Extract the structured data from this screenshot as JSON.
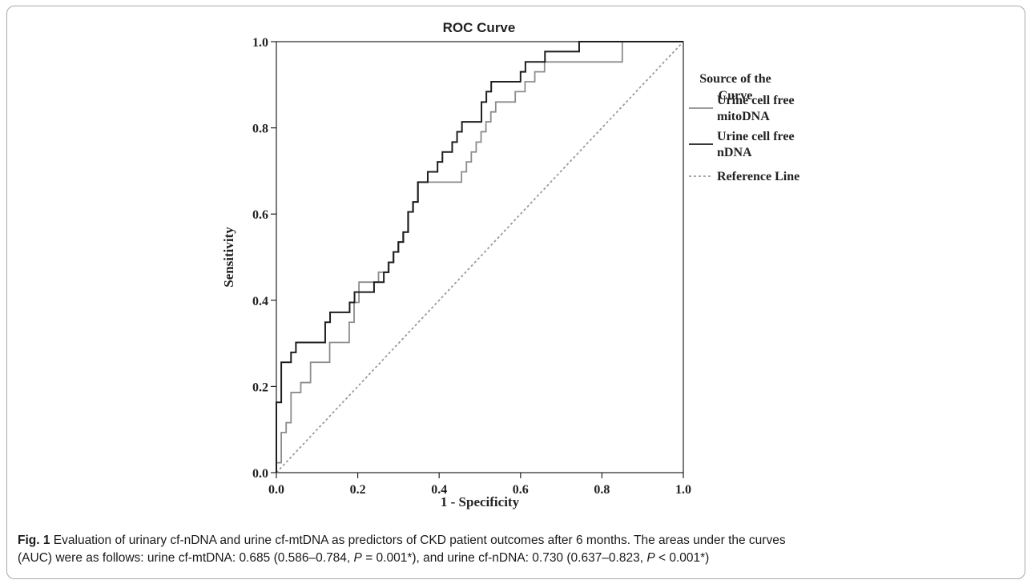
{
  "caption": {
    "fig_label": "Fig. 1",
    "line1": " Evaluation of urinary cf-nDNA and urine cf-mtDNA as predictors of CKD patient outcomes after 6 months. The areas under the curves",
    "line2_a": "(AUC) were as follows: urine cf-mtDNA: 0.685 (0.586–0.784, ",
    "p1_symbol": "P",
    "p1_rest": " = 0.001*), and urine cf-nDNA: 0.730 (0.637–0.823, ",
    "p2_symbol": "P",
    "p2_rest": " < 0.001*)"
  },
  "chart_data": {
    "type": "line",
    "title": "ROC Curve",
    "xlabel": "1 - Specificity",
    "ylabel": "Sensitivity",
    "xlim": [
      0,
      1
    ],
    "ylim": [
      0,
      1
    ],
    "xticks": [
      "0.0",
      "0.2",
      "0.4",
      "0.6",
      "0.8",
      "1.0"
    ],
    "yticks": [
      "0.0",
      "0.2",
      "0.4",
      "0.6",
      "0.8",
      "1.0"
    ],
    "grid": false,
    "legend": {
      "title": "Source of the Curve",
      "title_lines": [
        "Source of the",
        "Curve"
      ],
      "placement": "right"
    },
    "series": [
      {
        "name": "Urine cell free mitoDNA",
        "label_lines": [
          "Urine cell free",
          "mitoDNA"
        ],
        "color": "#8c8c8c",
        "dash": "none",
        "points": [
          [
            0,
            0
          ],
          [
            0,
            0.023
          ],
          [
            0.012,
            0.023
          ],
          [
            0.012,
            0.093
          ],
          [
            0.024,
            0.093
          ],
          [
            0.024,
            0.116
          ],
          [
            0.036,
            0.116
          ],
          [
            0.036,
            0.186
          ],
          [
            0.06,
            0.186
          ],
          [
            0.06,
            0.209
          ],
          [
            0.084,
            0.209
          ],
          [
            0.084,
            0.256
          ],
          [
            0.131,
            0.256
          ],
          [
            0.131,
            0.302
          ],
          [
            0.179,
            0.302
          ],
          [
            0.179,
            0.349
          ],
          [
            0.191,
            0.349
          ],
          [
            0.191,
            0.395
          ],
          [
            0.203,
            0.395
          ],
          [
            0.203,
            0.442
          ],
          [
            0.251,
            0.442
          ],
          [
            0.251,
            0.465
          ],
          [
            0.275,
            0.465
          ],
          [
            0.275,
            0.488
          ],
          [
            0.287,
            0.488
          ],
          [
            0.287,
            0.512
          ],
          [
            0.299,
            0.512
          ],
          [
            0.299,
            0.535
          ],
          [
            0.311,
            0.535
          ],
          [
            0.311,
            0.558
          ],
          [
            0.323,
            0.558
          ],
          [
            0.323,
            0.605
          ],
          [
            0.335,
            0.605
          ],
          [
            0.335,
            0.628
          ],
          [
            0.347,
            0.628
          ],
          [
            0.347,
            0.674
          ],
          [
            0.455,
            0.674
          ],
          [
            0.455,
            0.698
          ],
          [
            0.467,
            0.698
          ],
          [
            0.467,
            0.721
          ],
          [
            0.479,
            0.721
          ],
          [
            0.479,
            0.744
          ],
          [
            0.491,
            0.744
          ],
          [
            0.491,
            0.767
          ],
          [
            0.503,
            0.767
          ],
          [
            0.503,
            0.791
          ],
          [
            0.515,
            0.791
          ],
          [
            0.515,
            0.814
          ],
          [
            0.527,
            0.814
          ],
          [
            0.527,
            0.837
          ],
          [
            0.539,
            0.837
          ],
          [
            0.539,
            0.86
          ],
          [
            0.587,
            0.86
          ],
          [
            0.587,
            0.884
          ],
          [
            0.611,
            0.884
          ],
          [
            0.611,
            0.907
          ],
          [
            0.635,
            0.907
          ],
          [
            0.635,
            0.93
          ],
          [
            0.659,
            0.93
          ],
          [
            0.659,
            0.953
          ],
          [
            0.85,
            0.953
          ],
          [
            0.85,
            1.0
          ],
          [
            1.0,
            1.0
          ]
        ]
      },
      {
        "name": "Urine cell free nDNA",
        "label_lines": [
          "Urine cell free",
          "nDNA"
        ],
        "color": "#1e1e1e",
        "dash": "none",
        "points": [
          [
            0,
            0
          ],
          [
            0,
            0.163
          ],
          [
            0.012,
            0.163
          ],
          [
            0.012,
            0.256
          ],
          [
            0.036,
            0.256
          ],
          [
            0.036,
            0.279
          ],
          [
            0.048,
            0.279
          ],
          [
            0.048,
            0.302
          ],
          [
            0.12,
            0.302
          ],
          [
            0.12,
            0.349
          ],
          [
            0.132,
            0.349
          ],
          [
            0.132,
            0.372
          ],
          [
            0.18,
            0.372
          ],
          [
            0.18,
            0.395
          ],
          [
            0.192,
            0.395
          ],
          [
            0.192,
            0.419
          ],
          [
            0.24,
            0.419
          ],
          [
            0.24,
            0.442
          ],
          [
            0.264,
            0.442
          ],
          [
            0.264,
            0.465
          ],
          [
            0.276,
            0.465
          ],
          [
            0.276,
            0.488
          ],
          [
            0.288,
            0.488
          ],
          [
            0.288,
            0.512
          ],
          [
            0.3,
            0.512
          ],
          [
            0.3,
            0.535
          ],
          [
            0.312,
            0.535
          ],
          [
            0.312,
            0.558
          ],
          [
            0.324,
            0.558
          ],
          [
            0.324,
            0.605
          ],
          [
            0.336,
            0.605
          ],
          [
            0.336,
            0.628
          ],
          [
            0.348,
            0.628
          ],
          [
            0.348,
            0.674
          ],
          [
            0.372,
            0.674
          ],
          [
            0.372,
            0.698
          ],
          [
            0.396,
            0.698
          ],
          [
            0.396,
            0.721
          ],
          [
            0.408,
            0.721
          ],
          [
            0.408,
            0.744
          ],
          [
            0.432,
            0.744
          ],
          [
            0.432,
            0.767
          ],
          [
            0.444,
            0.767
          ],
          [
            0.444,
            0.791
          ],
          [
            0.456,
            0.791
          ],
          [
            0.456,
            0.814
          ],
          [
            0.504,
            0.814
          ],
          [
            0.504,
            0.86
          ],
          [
            0.516,
            0.86
          ],
          [
            0.516,
            0.884
          ],
          [
            0.528,
            0.884
          ],
          [
            0.528,
            0.907
          ],
          [
            0.6,
            0.907
          ],
          [
            0.6,
            0.93
          ],
          [
            0.612,
            0.93
          ],
          [
            0.612,
            0.953
          ],
          [
            0.66,
            0.953
          ],
          [
            0.66,
            0.977
          ],
          [
            0.744,
            0.977
          ],
          [
            0.744,
            1.0
          ],
          [
            1.0,
            1.0
          ]
        ]
      },
      {
        "name": "Reference Line",
        "label_lines": [
          "Reference Line"
        ],
        "color": "#9a9a9a",
        "dash": "3,3",
        "points": [
          [
            0,
            0
          ],
          [
            1,
            1
          ]
        ]
      }
    ]
  }
}
